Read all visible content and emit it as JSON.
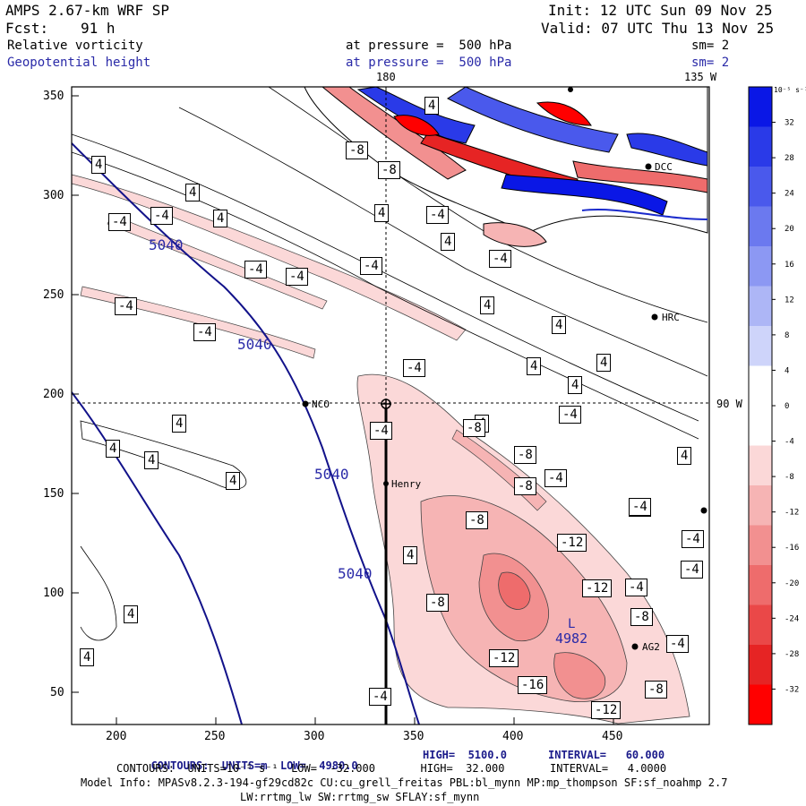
{
  "header": {
    "model": "AMPS 2.67-km WRF SP",
    "init": "Init: 12 UTC Sun 09 Nov 25",
    "fcst_label": "Fcst:",
    "fcst_value": "91 h",
    "valid": "Valid: 07 UTC Thu 13 Nov 25",
    "field1": "Relative vorticity",
    "field1_level": "at pressure =  500 hPa",
    "field1_sm": "sm= 2",
    "field2": "Geopotential height",
    "field2_level": "at pressure =  500 hPa",
    "field2_sm": "sm= 2"
  },
  "map": {
    "top_labels": [
      "180",
      "135 W"
    ],
    "right_label": "90 W",
    "x_ticks": [
      "200",
      "250",
      "300",
      "350",
      "400",
      "450"
    ],
    "y_ticks": [
      "350",
      "300",
      "250",
      "200",
      "150",
      "100",
      "50"
    ],
    "stations": [
      "NCO",
      "Henry",
      "HRC",
      "AG2",
      "DCC"
    ],
    "height_contours": [
      "5040",
      "5040",
      "5040",
      "5040"
    ],
    "low_label": "L",
    "low_value": "4982",
    "vort_labels_pos": [
      "4",
      "4",
      "4",
      "4",
      "4",
      "4",
      "4",
      "4",
      "4",
      "4",
      "4",
      "4",
      "4",
      "4",
      "4",
      "4",
      "4",
      "4",
      "4",
      "4"
    ],
    "vort_labels_neg": [
      "-4",
      "-4",
      "-4",
      "-4",
      "-4",
      "-4",
      "-4",
      "-4",
      "-4",
      "-4",
      "-4",
      "-4",
      "-4",
      "-4",
      "-4",
      "-4",
      "-4",
      "-4",
      "-4",
      "-4"
    ],
    "vort_labels_neg8": [
      "-8",
      "-8",
      "-8",
      "-8",
      "-8",
      "-8",
      "-8",
      "-8",
      "-8"
    ],
    "vort_labels_neg12": [
      "-12",
      "-12",
      "-12",
      "-12"
    ],
    "vort_labels_neg16": [
      "-16"
    ]
  },
  "colorbar": {
    "units": "10⁻⁵ s⁻¹",
    "ticks": [
      "32",
      "28",
      "24",
      "20",
      "16",
      "12",
      "8",
      "4",
      "0",
      "-4",
      "-8",
      "-12",
      "-16",
      "-20",
      "-24",
      "-28",
      "-32"
    ],
    "colors": [
      "#0a17e6",
      "#2a3ae8",
      "#4a59ec",
      "#6b79ef",
      "#8c98f3",
      "#adb6f6",
      "#ced4fa",
      "#ffffff",
      "#ffffff",
      "#fbd8d8",
      "#f6b4b4",
      "#f29090",
      "#ee6c6c",
      "#ea4848",
      "#e62424",
      "#ff0000"
    ]
  },
  "footer": {
    "line1_a": "CONTOURS:  UNITS=m  LOW=  4980.0",
    "line1_b": "HIGH=  5100.0",
    "line1_c": "INTERVAL=   60.000",
    "line2": "CONTOURS:  UNITS=10⁻⁵ s⁻¹  LOW=  -32.000       HIGH=  32.000       INTERVAL=   4.0000",
    "line3": "Model Info: MPASv8.2.3-194-gf29cd82c CU:cu_grell_freitas PBL:bl_mynn MP:mp_thompson SF:sf_noahmp 2.7",
    "line4": "LW:rrtmg_lw SW:rrtmg_sw SFLAY:sf_mynn"
  }
}
